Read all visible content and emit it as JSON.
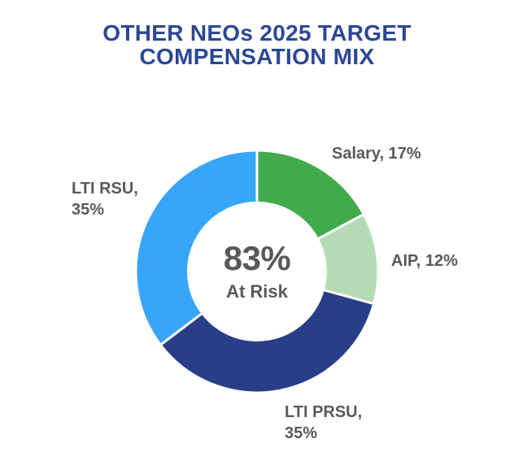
{
  "page": {
    "title_lines": [
      "OTHER NEOs 2025 TARGET",
      "COMPENSATION MIX"
    ],
    "title_color": "#2B4796",
    "label_color": "#595959",
    "background": "#FFFFFF"
  },
  "chart_data": {
    "type": "pie",
    "subtype": "donut",
    "title": "OTHER NEOs 2025 TARGET COMPENSATION MIX",
    "legend": "none",
    "labels_position": "outside",
    "start_angle_deg": -90,
    "direction": "clockwise",
    "inner_radius_ratio": 0.567,
    "slice_border_color": "#FFFFFF",
    "segments": [
      {
        "label": "Salary",
        "value": 17,
        "unit": "%",
        "color": "#41AB4C",
        "label_line1": "Salary, 17%",
        "label_line2": ""
      },
      {
        "label": "AIP",
        "value": 12,
        "unit": "%",
        "color": "#B5DBB4",
        "label_line1": "AIP, 12%",
        "label_line2": ""
      },
      {
        "label": "LTI PRSU",
        "value": 35,
        "unit": "%",
        "color": "#283F87",
        "label_line1": "LTI PRSU,",
        "label_line2": "35%"
      },
      {
        "label": "LTI RSU",
        "value": 35,
        "unit": "%",
        "color": "#38A6F8",
        "label_line1": "LTI RSU,",
        "label_line2": "35%"
      }
    ],
    "center_label": {
      "value": "83%",
      "caption": "At Risk"
    }
  }
}
